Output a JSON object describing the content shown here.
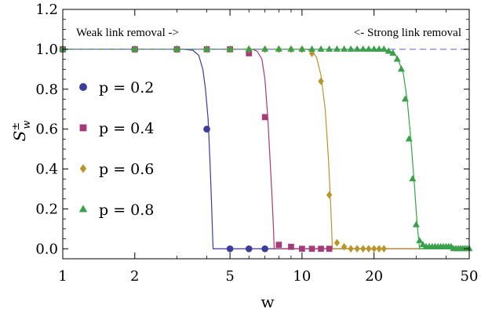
{
  "chart_data": {
    "type": "scatter",
    "x_scale": "log",
    "xlim": [
      1,
      50
    ],
    "ylim": [
      -0.05,
      1.2
    ],
    "xlabel": "w",
    "ylabel": "S",
    "ylabel_superscript": "±",
    "ylabel_subscript": "w",
    "x_ticks": [
      {
        "value": 1,
        "label": "1"
      },
      {
        "value": 2,
        "label": "2"
      },
      {
        "value": 5,
        "label": "5"
      },
      {
        "value": 10,
        "label": "10"
      },
      {
        "value": 20,
        "label": "20"
      },
      {
        "value": 50,
        "label": "50"
      }
    ],
    "y_ticks": [
      {
        "value": 0.0,
        "label": "0.0"
      },
      {
        "value": 0.2,
        "label": "0.2"
      },
      {
        "value": 0.4,
        "label": "0.4"
      },
      {
        "value": 0.6,
        "label": "0.6"
      },
      {
        "value": 0.8,
        "label": "0.8"
      },
      {
        "value": 1.0,
        "label": "1.0"
      },
      {
        "value": 1.2,
        "label": "1.2"
      }
    ],
    "annotations": {
      "left": "Weak link removal ->",
      "right": "<- Strong link removal"
    },
    "reference_line": {
      "y": 1.0,
      "style": "dashed",
      "color": "#7f7fcf"
    },
    "legend_position": "left",
    "series": [
      {
        "name": "p = 0.2",
        "marker": "circle",
        "color": "#3a3d9a",
        "threshold": 4.25,
        "points": [
          [
            1,
            1.0
          ],
          [
            2,
            1.0
          ],
          [
            3,
            1.0
          ],
          [
            4,
            0.6
          ],
          [
            5,
            0.0
          ],
          [
            6,
            0.0
          ],
          [
            7,
            0.0
          ]
        ],
        "curve": [
          [
            1,
            1.0
          ],
          [
            3.2,
            1.0
          ],
          [
            3.5,
            0.995
          ],
          [
            3.7,
            0.97
          ],
          [
            3.85,
            0.9
          ],
          [
            3.95,
            0.8
          ],
          [
            4.05,
            0.65
          ],
          [
            4.12,
            0.45
          ],
          [
            4.18,
            0.25
          ],
          [
            4.22,
            0.1
          ],
          [
            4.25,
            0.0
          ],
          [
            50,
            0.0
          ]
        ]
      },
      {
        "name": "p = 0.4",
        "marker": "square",
        "color": "#a63a7a",
        "threshold": 7.65,
        "points": [
          [
            1,
            1.0
          ],
          [
            2,
            1.0
          ],
          [
            3,
            1.0
          ],
          [
            4,
            1.0
          ],
          [
            5,
            1.0
          ],
          [
            6,
            0.98
          ],
          [
            7,
            0.66
          ],
          [
            8,
            0.02
          ],
          [
            9,
            0.01
          ],
          [
            10,
            0.0
          ],
          [
            11,
            0.0
          ],
          [
            12,
            0.0
          ],
          [
            13,
            0.0
          ]
        ],
        "curve": [
          [
            1,
            1.0
          ],
          [
            6.2,
            1.0
          ],
          [
            6.5,
            0.99
          ],
          [
            6.8,
            0.95
          ],
          [
            7.0,
            0.85
          ],
          [
            7.2,
            0.65
          ],
          [
            7.35,
            0.45
          ],
          [
            7.5,
            0.25
          ],
          [
            7.6,
            0.1
          ],
          [
            7.65,
            0.0
          ],
          [
            50,
            0.0
          ]
        ]
      },
      {
        "name": "p = 0.6",
        "marker": "diamond",
        "color": "#b8962e",
        "threshold": 13.4,
        "points": [
          [
            1,
            1.0
          ],
          [
            2,
            1.0
          ],
          [
            3,
            1.0
          ],
          [
            4,
            1.0
          ],
          [
            5,
            1.0
          ],
          [
            6,
            1.0
          ],
          [
            7,
            1.0
          ],
          [
            8,
            1.0
          ],
          [
            9,
            1.0
          ],
          [
            10,
            1.0
          ],
          [
            11,
            0.98
          ],
          [
            12,
            0.84
          ],
          [
            13,
            0.27
          ],
          [
            14,
            0.03
          ],
          [
            15,
            0.01
          ],
          [
            16,
            0.0
          ],
          [
            17,
            0.0
          ],
          [
            18,
            0.0
          ],
          [
            19,
            0.0
          ],
          [
            20,
            0.0
          ],
          [
            21,
            0.0
          ],
          [
            22,
            0.0
          ]
        ],
        "curve": [
          [
            1,
            1.0
          ],
          [
            10.5,
            1.0
          ],
          [
            11.0,
            0.99
          ],
          [
            11.5,
            0.96
          ],
          [
            12.0,
            0.87
          ],
          [
            12.5,
            0.7
          ],
          [
            12.9,
            0.45
          ],
          [
            13.2,
            0.2
          ],
          [
            13.4,
            0.0
          ],
          [
            50,
            0.0
          ]
        ]
      },
      {
        "name": "p = 0.8",
        "marker": "triangle",
        "color": "#3aa04a",
        "threshold": 31.0,
        "points": [
          [
            1,
            1.0
          ],
          [
            2,
            1.0
          ],
          [
            3,
            1.0
          ],
          [
            4,
            1.0
          ],
          [
            5,
            1.0
          ],
          [
            6,
            1.0
          ],
          [
            7,
            1.0
          ],
          [
            8,
            1.0
          ],
          [
            9,
            1.0
          ],
          [
            10,
            1.0
          ],
          [
            11,
            1.0
          ],
          [
            12,
            1.0
          ],
          [
            13,
            1.0
          ],
          [
            14,
            1.0
          ],
          [
            15,
            1.0
          ],
          [
            16,
            1.0
          ],
          [
            17,
            1.0
          ],
          [
            18,
            1.0
          ],
          [
            19,
            1.0
          ],
          [
            20,
            1.0
          ],
          [
            21,
            1.0
          ],
          [
            22,
            1.0
          ],
          [
            23,
            0.99
          ],
          [
            24,
            0.98
          ],
          [
            25,
            0.95
          ],
          [
            26,
            0.9
          ],
          [
            27,
            0.75
          ],
          [
            28,
            0.55
          ],
          [
            29,
            0.35
          ],
          [
            30,
            0.12
          ],
          [
            31,
            0.04
          ],
          [
            32,
            0.02
          ],
          [
            33,
            0.01
          ],
          [
            34,
            0.01
          ],
          [
            35,
            0.01
          ],
          [
            36,
            0.01
          ],
          [
            37,
            0.01
          ],
          [
            38,
            0.01
          ],
          [
            39,
            0.01
          ],
          [
            40,
            0.01
          ],
          [
            41,
            0.01
          ],
          [
            42,
            0.01
          ],
          [
            43,
            0.0
          ],
          [
            44,
            0.0
          ],
          [
            45,
            0.0
          ],
          [
            46,
            0.0
          ],
          [
            47,
            0.0
          ],
          [
            48,
            0.0
          ],
          [
            49,
            0.0
          ],
          [
            50,
            0.0
          ]
        ],
        "curve": [
          [
            1,
            1.0
          ],
          [
            22,
            1.0
          ],
          [
            23.5,
            0.99
          ],
          [
            25,
            0.96
          ],
          [
            26.5,
            0.88
          ],
          [
            27.5,
            0.75
          ],
          [
            28.5,
            0.55
          ],
          [
            29.5,
            0.32
          ],
          [
            30.3,
            0.12
          ],
          [
            31.0,
            0.0
          ],
          [
            50,
            0.0
          ]
        ]
      }
    ]
  }
}
